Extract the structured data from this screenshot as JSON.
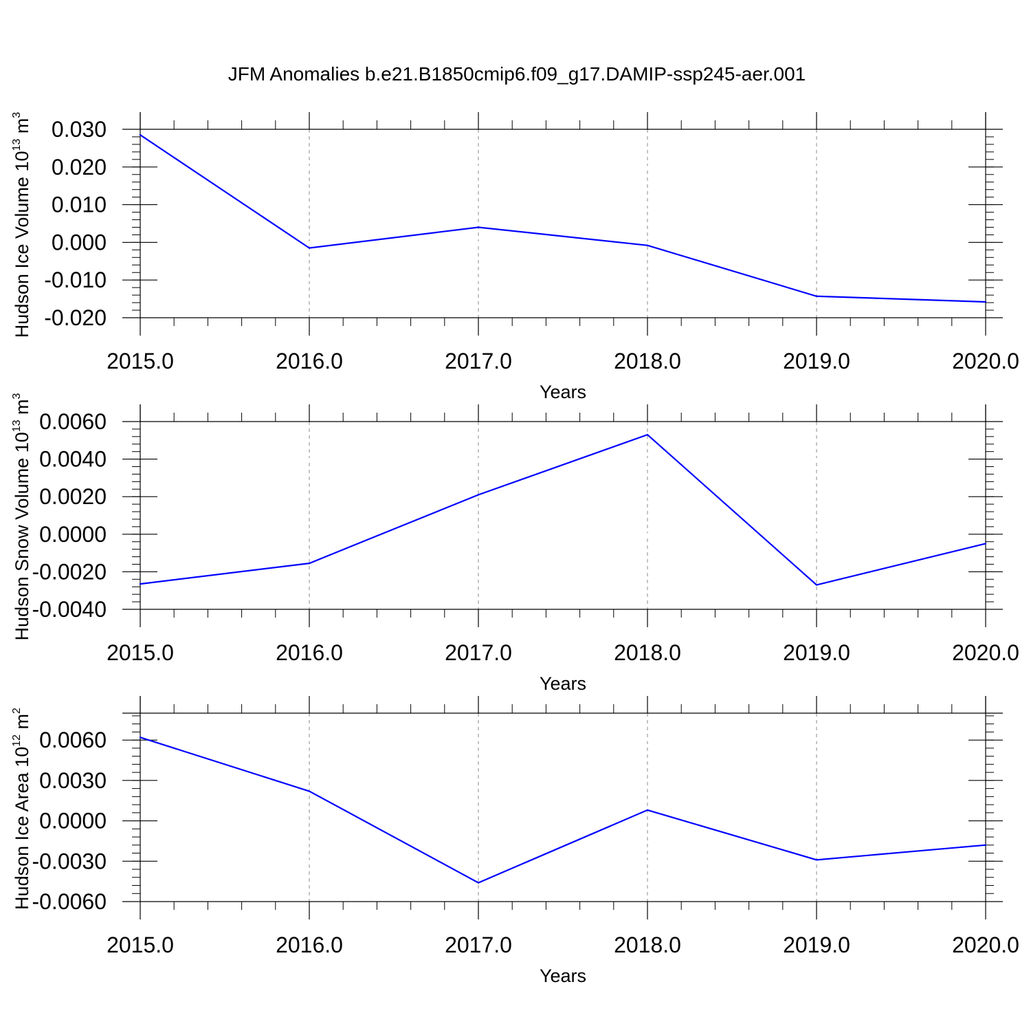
{
  "title": "JFM Anomalies b.e21.B1850cmip6.f09_g17.DAMIP-ssp245-aer.001",
  "colors": {
    "series": "#0000ff",
    "axis": "#000000",
    "grid": "#888888"
  },
  "chart_data": [
    {
      "type": "line",
      "ylabel": {
        "text": "Hudson Ice Volume 10",
        "exponent": "13",
        "unit": "m",
        "unit_exponent": "3"
      },
      "xlabel": "Years",
      "x": [
        2015,
        2016,
        2017,
        2018,
        2019,
        2020
      ],
      "values": [
        0.0285,
        -0.0015,
        0.004,
        -0.0008,
        -0.0143,
        -0.0158
      ],
      "xlim": [
        2015,
        2020
      ],
      "ylim": [
        -0.02,
        0.03
      ],
      "yticks": [
        0.03,
        0.02,
        0.01,
        0.0,
        -0.01,
        -0.02
      ],
      "ytick_labels": [
        "0.030",
        "0.020",
        "0.010",
        "0.000",
        "-0.010",
        "-0.020"
      ],
      "xtick_labels": [
        "2015.0",
        "2016.0",
        "2017.0",
        "2018.0",
        "2019.0",
        "2020.0"
      ],
      "grid": "vertical dashed at major x ticks"
    },
    {
      "type": "line",
      "ylabel": {
        "text": "Hudson Snow Volume 10",
        "exponent": "13",
        "unit": "m",
        "unit_exponent": "3"
      },
      "xlabel": "Years",
      "x": [
        2015,
        2016,
        2017,
        2018,
        2019,
        2020
      ],
      "values": [
        -0.00265,
        -0.00155,
        0.0021,
        0.0053,
        -0.0027,
        -0.0005
      ],
      "xlim": [
        2015,
        2020
      ],
      "ylim": [
        -0.004,
        0.006
      ],
      "yticks": [
        0.006,
        0.004,
        0.002,
        0.0,
        -0.002,
        -0.004
      ],
      "ytick_labels": [
        "0.0060",
        "0.0040",
        "0.0020",
        "0.0000",
        "-0.0020",
        "-0.0040"
      ],
      "xtick_labels": [
        "2015.0",
        "2016.0",
        "2017.0",
        "2018.0",
        "2019.0",
        "2020.0"
      ],
      "grid": "vertical dashed at major x ticks"
    },
    {
      "type": "line",
      "ylabel": {
        "text": "Hudson Ice Area 10",
        "exponent": "12",
        "unit": "m",
        "unit_exponent": "2"
      },
      "xlabel": "Years",
      "x": [
        2015,
        2016,
        2017,
        2018,
        2019,
        2020
      ],
      "values": [
        0.0062,
        0.0022,
        -0.0046,
        0.0008,
        -0.0029,
        -0.0018
      ],
      "xlim": [
        2015,
        2020
      ],
      "ylim": [
        -0.006,
        0.008
      ],
      "yticks": [
        0.006,
        0.003,
        0.0,
        -0.003,
        -0.006
      ],
      "ytick_labels": [
        "0.0060",
        "0.0030",
        "0.0000",
        "-0.0030",
        "-0.0060"
      ],
      "xtick_labels": [
        "2015.0",
        "2016.0",
        "2017.0",
        "2018.0",
        "2019.0",
        "2020.0"
      ],
      "grid": "vertical dashed at major x ticks"
    }
  ]
}
